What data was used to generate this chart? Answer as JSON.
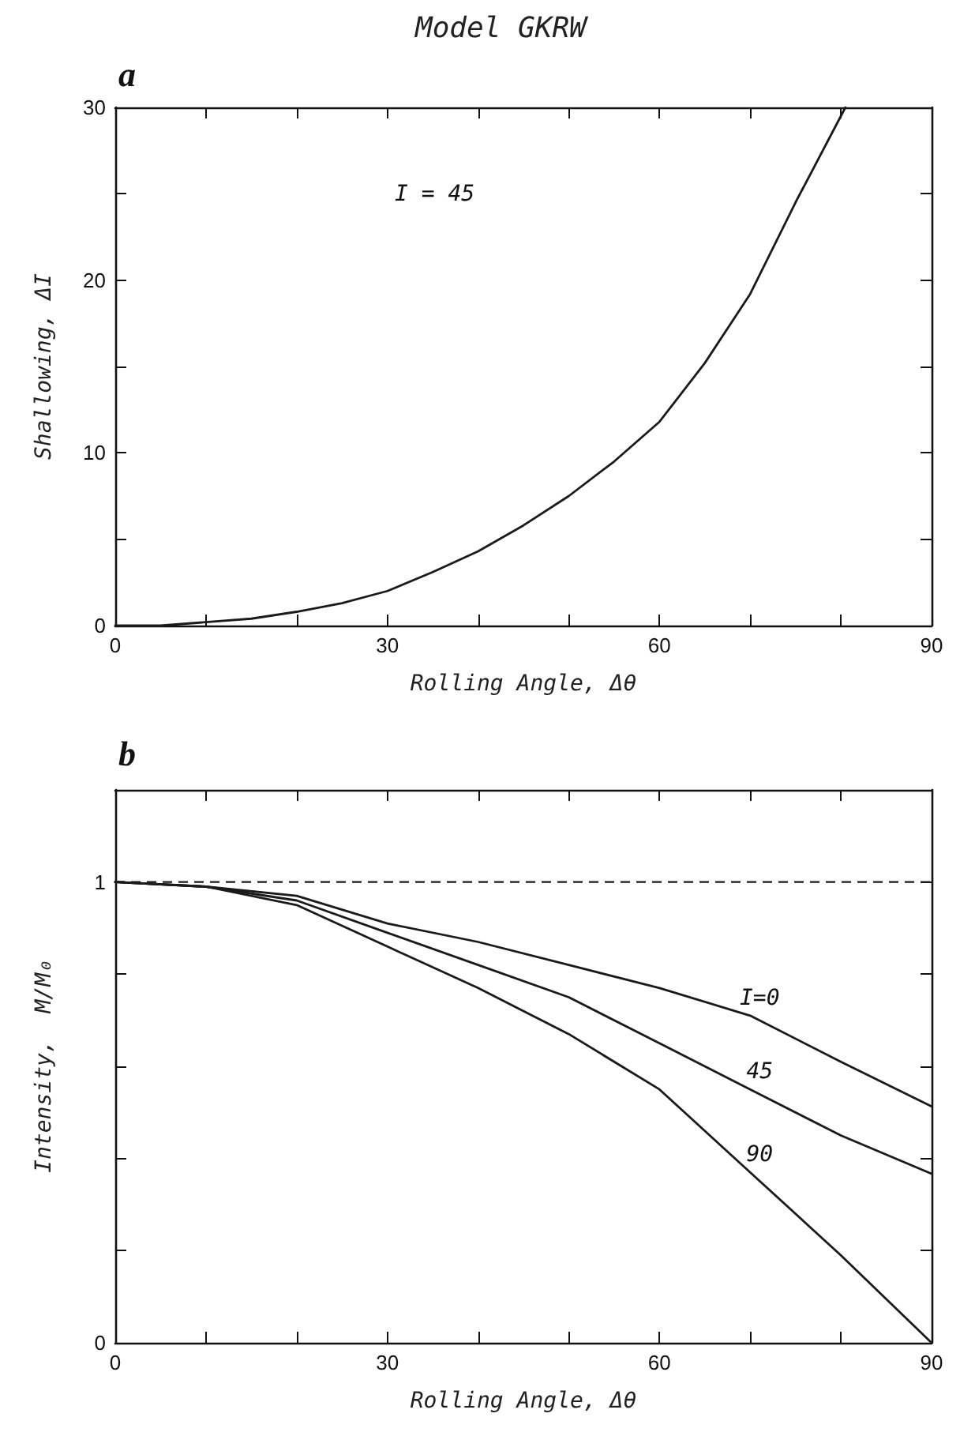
{
  "chart_data": [
    {
      "type": "line",
      "title": "Model GKRW",
      "subtitle": "a",
      "xlabel": "Rolling Angle, Δθ",
      "ylabel": "Shallowing, ΔI",
      "annotations": [
        "I = 45"
      ],
      "marker": "none",
      "line_style": "solid",
      "xlim": [
        0,
        90
      ],
      "ylim": [
        0,
        30
      ],
      "xticks": [
        0,
        {
          "value": 10,
          "label": null
        },
        {
          "value": 20,
          "label": null
        },
        30,
        {
          "value": 40,
          "label": null
        },
        {
          "value": 50,
          "label": null
        },
        60,
        {
          "value": 70,
          "label": null
        },
        {
          "value": 80,
          "label": null
        },
        90
      ],
      "yticks": [
        0,
        {
          "value": 5,
          "label": null
        },
        10,
        {
          "value": 15,
          "label": null
        },
        20,
        {
          "value": 25,
          "label": null
        },
        30
      ],
      "series": [
        {
          "color": "#1a1a1a",
          "x": [
            0,
            5,
            10,
            15,
            20,
            25,
            30,
            35,
            40,
            45,
            50,
            55,
            60,
            65,
            70,
            75,
            80.5
          ],
          "values": [
            0,
            0,
            0.2,
            0.4,
            0.8,
            1.3,
            2.0,
            3.1,
            4.3,
            5.8,
            7.5,
            9.5,
            11.8,
            15.2,
            19.2,
            24.5,
            30
          ]
        }
      ]
    },
    {
      "type": "line",
      "subtitle": "b",
      "xlabel": "Rolling Angle, Δθ",
      "ylabel": "Intensity,  M/M₀",
      "marker": "none",
      "line_style": "solid",
      "xlim": [
        0,
        90
      ],
      "ylim": [
        0,
        1.2
      ],
      "xticks": [
        0,
        {
          "value": 10,
          "label": null
        },
        {
          "value": 20,
          "label": null
        },
        30,
        {
          "value": 40,
          "label": null
        },
        {
          "value": 50,
          "label": null
        },
        60,
        {
          "value": 70,
          "label": null
        },
        {
          "value": 80,
          "label": null
        },
        90
      ],
      "yticks": [
        0,
        {
          "value": 0.2,
          "label": null
        },
        {
          "value": 0.4,
          "label": null
        },
        {
          "value": 0.6,
          "label": null
        },
        {
          "value": 0.8,
          "label": null
        },
        1,
        {
          "value": 1.2,
          "label": null
        }
      ],
      "ref_lines": [
        {
          "axis": "y",
          "value": 1,
          "color": "#1a1a1a",
          "line_style": "dashed"
        }
      ],
      "series": [
        {
          "name": "I=0",
          "color": "#1a1a1a",
          "x": [
            0,
            10,
            20,
            30,
            40,
            50,
            60,
            70,
            80,
            90
          ],
          "values": [
            1,
            0.99,
            0.97,
            0.91,
            0.87,
            0.82,
            0.77,
            0.71,
            0.61,
            0.513
          ]
        },
        {
          "name": "45",
          "color": "#1a1a1a",
          "x": [
            0,
            10,
            20,
            30,
            40,
            50,
            60,
            70,
            80,
            90
          ],
          "values": [
            1,
            0.99,
            0.96,
            0.89,
            0.82,
            0.75,
            0.65,
            0.55,
            0.45,
            0.367
          ]
        },
        {
          "name": "90",
          "color": "#1a1a1a",
          "x": [
            0,
            10,
            20,
            30,
            40,
            50,
            60,
            70,
            80,
            90
          ],
          "values": [
            1,
            0.99,
            0.95,
            0.86,
            0.77,
            0.67,
            0.55,
            0.37,
            0.19,
            0
          ]
        }
      ]
    }
  ]
}
